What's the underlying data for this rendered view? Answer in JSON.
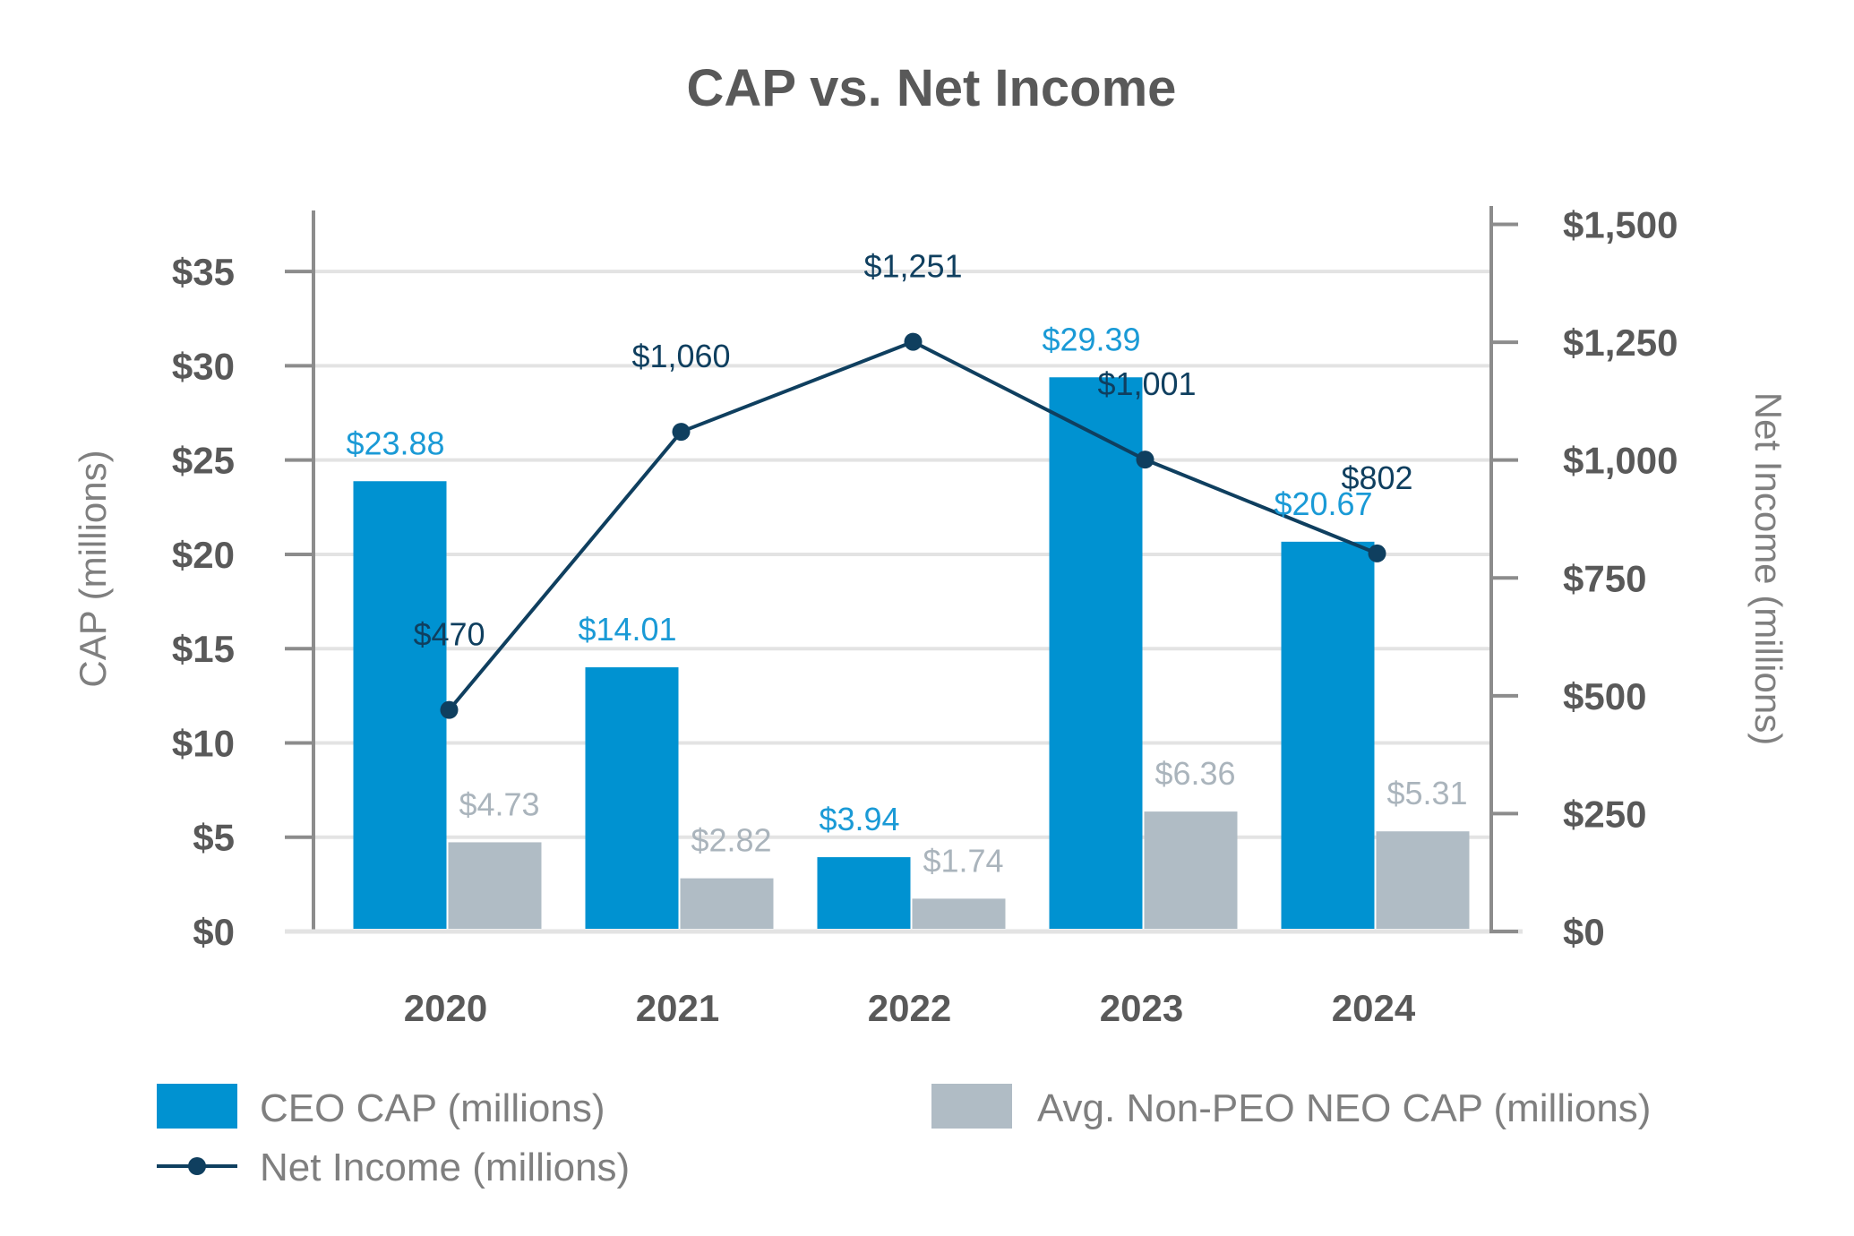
{
  "chart_data": {
    "type": "bar",
    "title": "CAP vs. Net Income",
    "categories": [
      "2020",
      "2021",
      "2022",
      "2023",
      "2024"
    ],
    "series": [
      {
        "name": "CEO CAP (millions)",
        "type": "bar",
        "axis": "left",
        "color": "#0092d1",
        "values": [
          23.88,
          14.01,
          3.94,
          29.39,
          20.67
        ],
        "labels": [
          "$23.88",
          "$14.01",
          "$3.94",
          "$29.39",
          "$20.67"
        ]
      },
      {
        "name": "Avg. Non-PEO NEO CAP (millions)",
        "type": "bar",
        "axis": "left",
        "color": "#b0bcc5",
        "values": [
          4.73,
          2.82,
          1.74,
          6.36,
          5.31
        ],
        "labels": [
          "$4.73",
          "$2.82",
          "$1.74",
          "$6.36",
          "$5.31"
        ]
      },
      {
        "name": "Net Income (millions)",
        "type": "line",
        "axis": "right",
        "color": "#0f3f5f",
        "values": [
          470,
          1060,
          1251,
          1001,
          802
        ],
        "labels": [
          "$470",
          "$1,060",
          "$1,251",
          "$1,001",
          "$802"
        ]
      }
    ],
    "y_left": {
      "label": "CAP (millions)",
      "ylim": [
        0,
        38
      ],
      "ticks": [
        0,
        5,
        10,
        15,
        20,
        25,
        30,
        35
      ],
      "tick_labels": [
        "$0",
        "$5",
        "$10",
        "$15",
        "$20",
        "$25",
        "$30",
        "$35"
      ]
    },
    "y_right": {
      "label": "Net Income (millions)",
      "ylim": [
        0,
        1520
      ],
      "ticks": [
        0,
        250,
        500,
        750,
        1000,
        1250,
        1500
      ],
      "tick_labels": [
        "$0",
        "$250",
        "$500",
        "$750",
        "$1,000",
        "$1,250",
        "$1,500"
      ]
    },
    "grid": true,
    "legend_position": "bottom",
    "colors": {
      "text": "#595959",
      "axis_title": "#7f7f7f",
      "grid": "#e3e3e3",
      "axis": "#8c8c8c"
    }
  }
}
